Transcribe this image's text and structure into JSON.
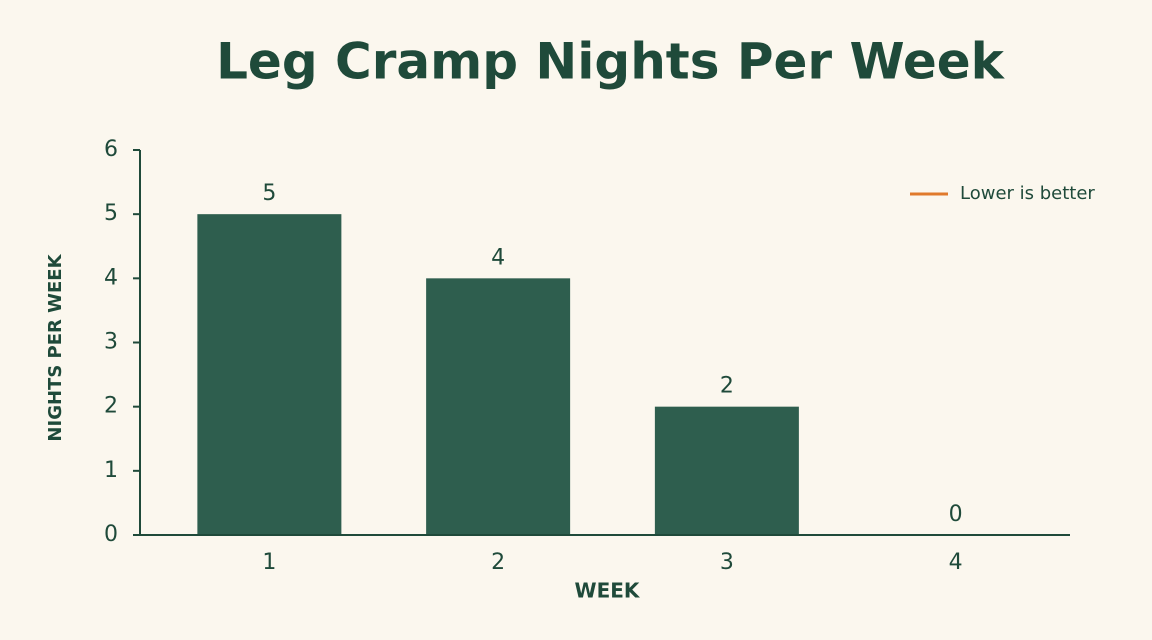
{
  "chart_data": {
    "type": "bar",
    "title": "Leg Cramp Nights Per Week",
    "x_label": "WEEK",
    "y_label": "NIGHTS PER WEEK",
    "categories": [
      "1",
      "2",
      "3",
      "4"
    ],
    "values": [
      5,
      4,
      2,
      0
    ],
    "color": "#2e5e4e",
    "ylim": [
      0,
      6
    ],
    "yticks": [
      0,
      1,
      2,
      3,
      4,
      5,
      6
    ],
    "grid": false,
    "annotation": {
      "text": "Lower is better",
      "color": "#e07a2c"
    }
  }
}
